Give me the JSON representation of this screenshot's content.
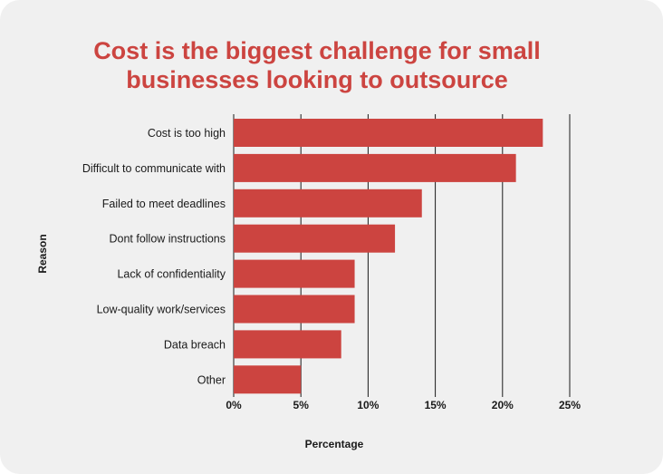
{
  "chart_data": {
    "type": "bar",
    "orientation": "horizontal",
    "title_lines": [
      "Cost is the biggest challenge for small",
      "businesses looking to outsource"
    ],
    "categories": [
      "Cost is too high",
      "Difficult to communicate with",
      "Failed to meet deadlines",
      "Dont follow instructions",
      "Lack of confidentiality",
      "Low-quality work/services",
      "Data breach",
      "Other"
    ],
    "values": [
      23,
      21,
      14,
      12,
      9,
      9,
      8,
      5
    ],
    "xlabel": "Percentage",
    "ylabel": "Reason",
    "xlim": [
      0,
      25
    ],
    "xticks": [
      0,
      5,
      10,
      15,
      20,
      25
    ],
    "xtick_labels": [
      "0%",
      "5%",
      "10%",
      "15%",
      "20%",
      "25%"
    ],
    "grid": "vertical",
    "bar_color": "#cc4440",
    "title_color": "#cc4440"
  }
}
